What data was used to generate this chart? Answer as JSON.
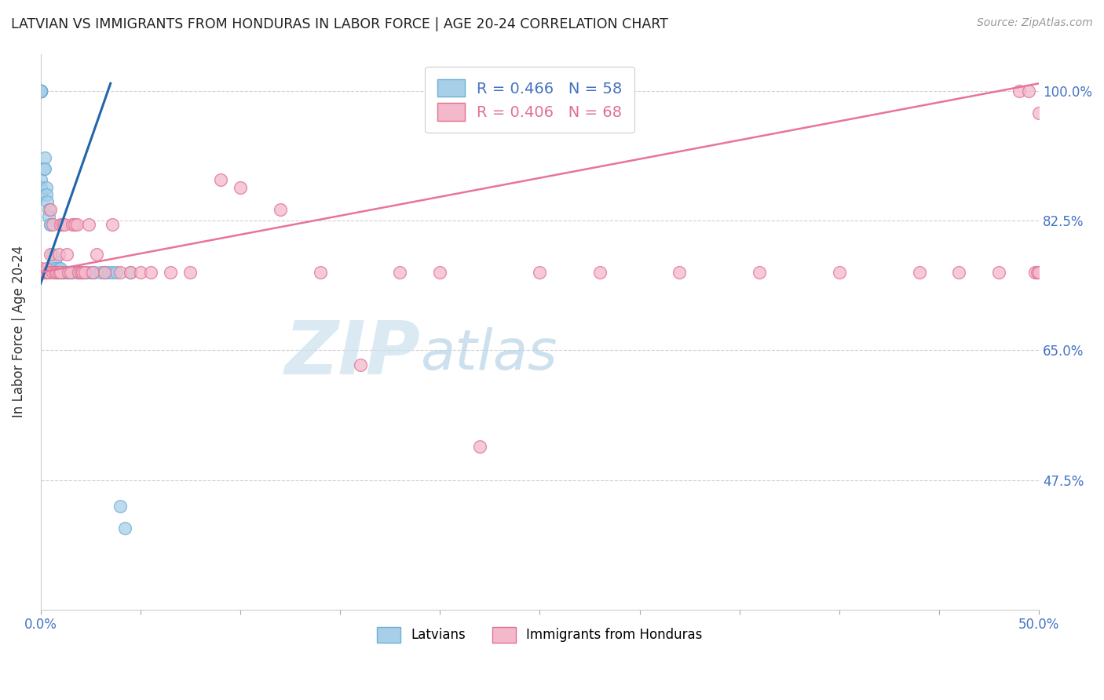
{
  "title": "LATVIAN VS IMMIGRANTS FROM HONDURAS IN LABOR FORCE | AGE 20-24 CORRELATION CHART",
  "source": "Source: ZipAtlas.com",
  "ylabel": "In Labor Force | Age 20-24",
  "xmin": 0.0,
  "xmax": 0.5,
  "ymin": 0.3,
  "ymax": 1.05,
  "color_latvian": "#a8cfe8",
  "color_latvia_edge": "#6baed6",
  "color_honduras": "#f4b8cb",
  "color_honduras_edge": "#e07090",
  "color_line_latvian": "#2166ac",
  "color_line_honduras": "#e8749a",
  "watermark_zip": "#cce0ef",
  "watermark_atlas": "#b0ccde",
  "lat_x": [
    0.0,
    0.0,
    0.0,
    0.0,
    0.0,
    0.0,
    0.0,
    0.0,
    0.0,
    0.0,
    0.0,
    0.0,
    0.0,
    0.0,
    0.0,
    0.0,
    0.0018,
    0.002,
    0.0022,
    0.003,
    0.003,
    0.0032,
    0.004,
    0.004,
    0.005,
    0.005,
    0.006,
    0.006,
    0.007,
    0.007,
    0.008,
    0.008,
    0.009,
    0.009,
    0.01,
    0.01,
    0.011,
    0.011,
    0.012,
    0.013,
    0.014,
    0.015,
    0.016,
    0.018,
    0.019,
    0.02,
    0.021,
    0.023,
    0.025,
    0.027,
    0.03,
    0.032,
    0.034,
    0.036,
    0.038,
    0.04,
    0.042,
    0.045
  ],
  "lat_y": [
    1.0,
    1.0,
    1.0,
    1.0,
    1.0,
    1.0,
    1.0,
    1.0,
    1.0,
    1.0,
    1.0,
    1.0,
    1.0,
    0.88,
    0.87,
    0.86,
    0.895,
    0.91,
    0.895,
    0.87,
    0.86,
    0.85,
    0.84,
    0.83,
    0.82,
    0.82,
    0.78,
    0.76,
    0.77,
    0.76,
    0.755,
    0.755,
    0.755,
    0.76,
    0.755,
    0.76,
    0.755,
    0.755,
    0.755,
    0.755,
    0.755,
    0.755,
    0.755,
    0.755,
    0.755,
    0.755,
    0.755,
    0.755,
    0.755,
    0.755,
    0.755,
    0.755,
    0.755,
    0.755,
    0.755,
    0.44,
    0.41,
    0.755
  ],
  "hon_x": [
    0.0,
    0.0,
    0.0,
    0.0,
    0.0,
    0.001,
    0.001,
    0.002,
    0.002,
    0.003,
    0.003,
    0.004,
    0.004,
    0.005,
    0.005,
    0.006,
    0.006,
    0.007,
    0.008,
    0.009,
    0.009,
    0.01,
    0.01,
    0.011,
    0.012,
    0.013,
    0.014,
    0.015,
    0.016,
    0.017,
    0.018,
    0.019,
    0.02,
    0.021,
    0.022,
    0.024,
    0.026,
    0.028,
    0.032,
    0.036,
    0.04,
    0.045,
    0.05,
    0.055,
    0.065,
    0.075,
    0.09,
    0.1,
    0.12,
    0.14,
    0.16,
    0.18,
    0.2,
    0.22,
    0.25,
    0.28,
    0.32,
    0.36,
    0.4,
    0.44,
    0.46,
    0.48,
    0.49,
    0.495,
    0.498,
    0.499,
    0.5,
    0.5
  ],
  "hon_y": [
    0.755,
    0.755,
    0.76,
    0.755,
    0.755,
    0.755,
    0.755,
    0.755,
    0.755,
    0.755,
    0.76,
    0.755,
    0.755,
    0.84,
    0.78,
    0.755,
    0.82,
    0.755,
    0.755,
    0.755,
    0.78,
    0.755,
    0.82,
    0.82,
    0.82,
    0.78,
    0.755,
    0.755,
    0.82,
    0.82,
    0.82,
    0.755,
    0.755,
    0.755,
    0.755,
    0.82,
    0.755,
    0.78,
    0.755,
    0.82,
    0.755,
    0.755,
    0.755,
    0.755,
    0.755,
    0.755,
    0.88,
    0.87,
    0.84,
    0.755,
    0.63,
    0.755,
    0.755,
    0.52,
    0.755,
    0.755,
    0.755,
    0.755,
    0.755,
    0.755,
    0.755,
    0.755,
    1.0,
    1.0,
    0.755,
    0.755,
    0.755,
    0.97
  ],
  "trendline_lat_x0": 0.0,
  "trendline_lat_x1": 0.035,
  "trendline_lat_y0": 0.74,
  "trendline_lat_y1": 1.01,
  "trendline_hon_x0": 0.0,
  "trendline_hon_x1": 0.5,
  "trendline_hon_y0": 0.755,
  "trendline_hon_y1": 1.01
}
